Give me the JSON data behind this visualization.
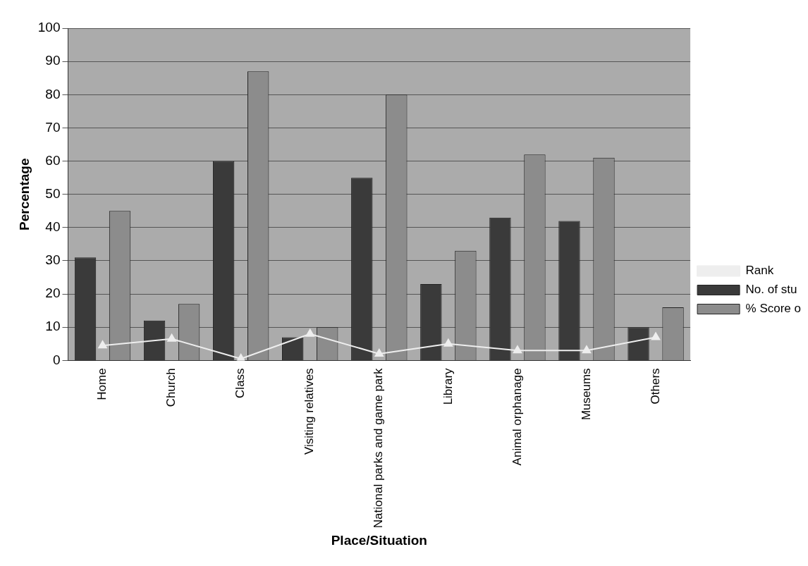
{
  "chart_data": {
    "type": "bar",
    "xlabel": "Place/Situation",
    "ylabel": "Percentage",
    "categories": [
      "Home",
      "Church",
      "Class",
      "Visiting relatives",
      "National parks and game park",
      "Library",
      "Animal orphanage",
      "Museums",
      "Others"
    ],
    "series": [
      {
        "name": "No. of stu",
        "color": "#3a3a3a",
        "values": [
          31,
          12,
          60,
          7,
          55,
          23,
          43,
          42,
          10
        ]
      },
      {
        "name": "% Score o",
        "color": "#8c8c8c",
        "values": [
          45,
          17,
          87,
          10,
          80,
          33,
          62,
          61,
          16
        ]
      },
      {
        "name": "Rank",
        "type": "line",
        "color": "#eeeeee",
        "marker": "triangle",
        "values": [
          4.5,
          6.5,
          0.5,
          8,
          2,
          5,
          3,
          3,
          7
        ]
      }
    ],
    "ylim": [
      0,
      100
    ],
    "yticks": [
      0,
      10,
      20,
      30,
      40,
      50,
      60,
      70,
      80,
      90,
      100
    ],
    "grid": "y",
    "legend": "right"
  }
}
